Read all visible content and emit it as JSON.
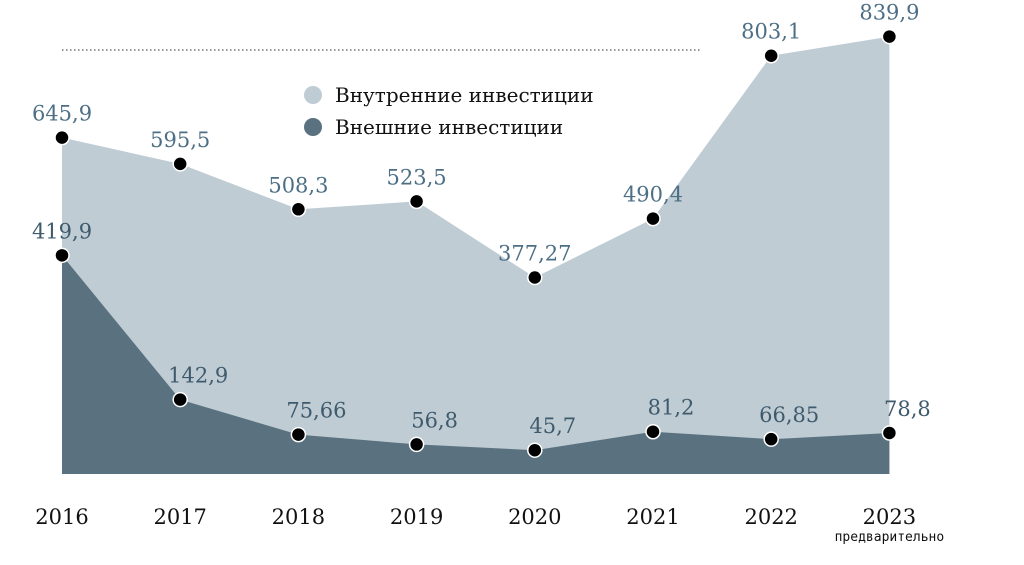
{
  "chart_data": {
    "type": "area",
    "categories": [
      "2016",
      "2017",
      "2018",
      "2019",
      "2020",
      "2021",
      "2022",
      "2023"
    ],
    "x_note": {
      "category": "2023",
      "text": "предварительно"
    },
    "series": [
      {
        "name": "Внутренние инвестиции",
        "values": [
          645.9,
          595.5,
          508.3,
          523.5,
          377.27,
          490.4,
          803.1,
          839.9
        ],
        "labels": [
          "645,9",
          "595,5",
          "508,3",
          "523,5",
          "377,27",
          "490,4",
          "803,1",
          "839,9"
        ],
        "color": "#bfccd4"
      },
      {
        "name": "Внешние инвестиции",
        "values": [
          419.9,
          142.9,
          75.66,
          56.8,
          45.7,
          81.2,
          66.85,
          78.8
        ],
        "labels": [
          "419,9",
          "142,9",
          "75,66",
          "56,8",
          "45,7",
          "81,2",
          "66,85",
          "78,8"
        ],
        "color": "#5a7280"
      }
    ],
    "legend": "top-center",
    "grid": false
  }
}
